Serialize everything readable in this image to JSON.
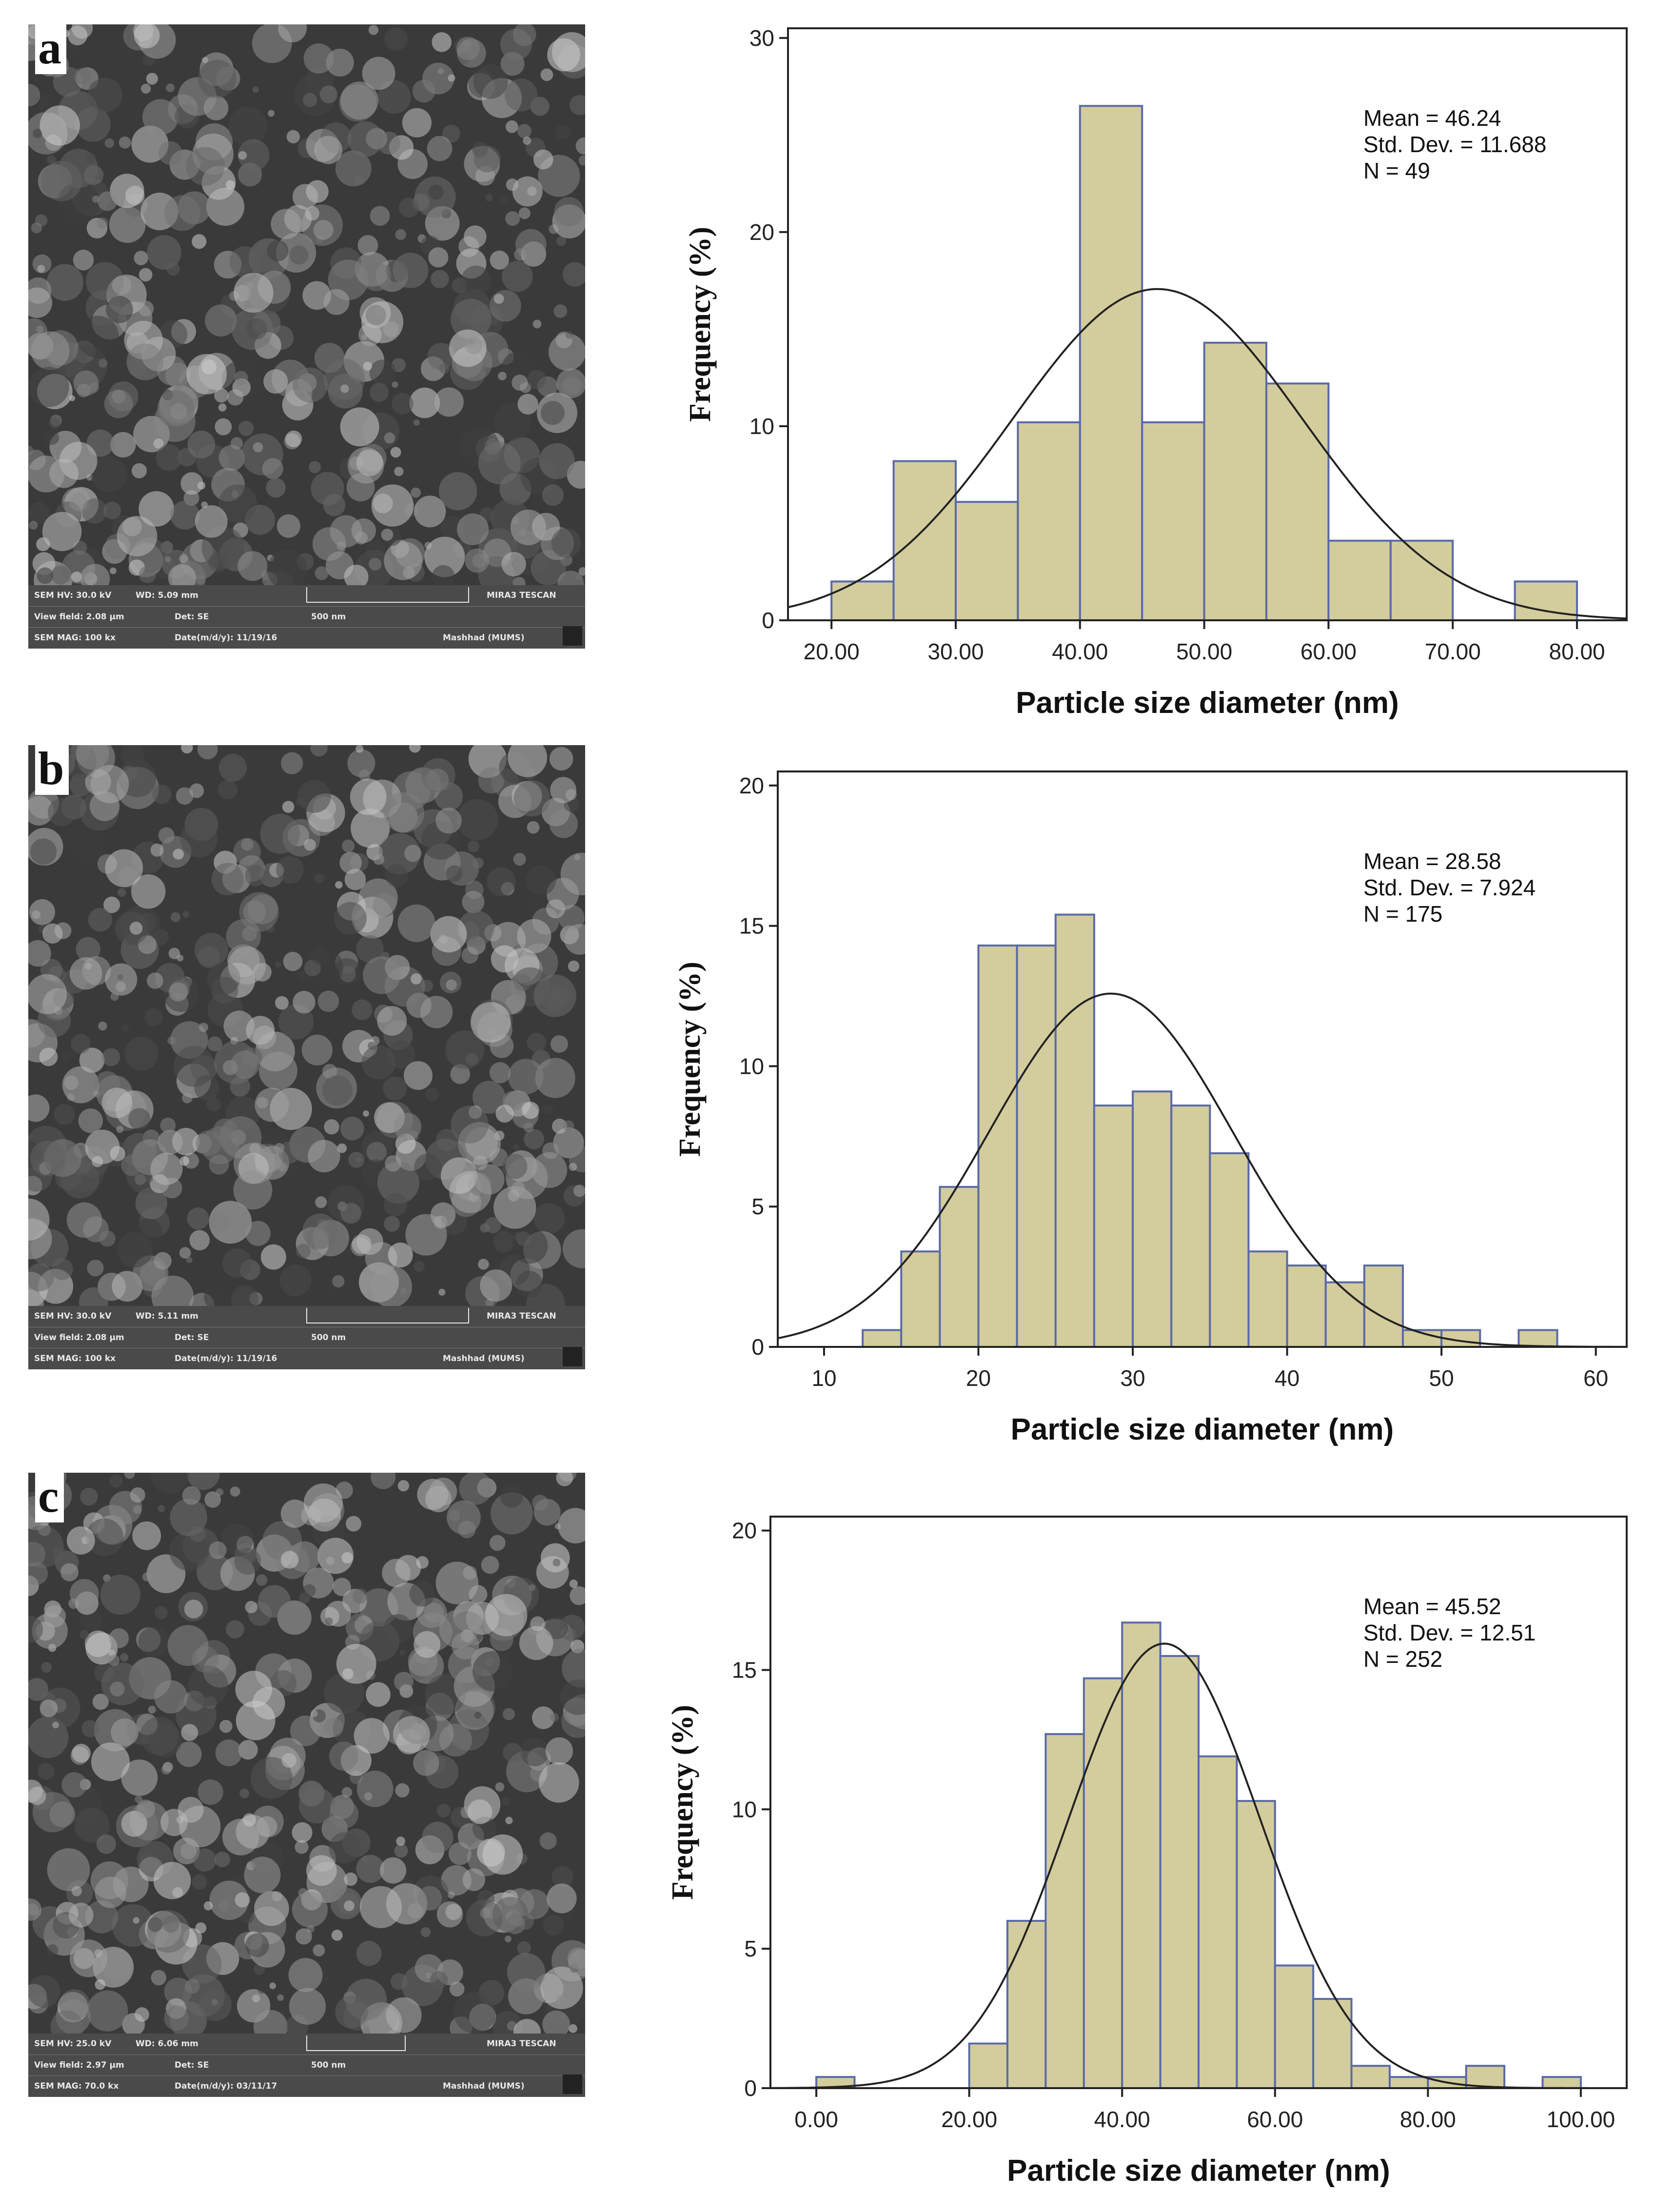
{
  "panels": [
    {
      "label": "a",
      "sem": {
        "hv": "SEM HV: 30.0 kV",
        "wd": "WD: 5.09 mm",
        "brand": "MIRA3 TESCAN",
        "view_field": "View field: 2.08 µm",
        "det": "Det: SE",
        "scale": "500 nm",
        "mag": "SEM MAG: 100 kx",
        "date": "Date(m/d/y): 11/19/16",
        "site": "Mashhad (MUMS)"
      },
      "chart_data": {
        "type": "bar",
        "xlabel": "Particle size diameter (nm)",
        "ylabel": "Frequency (%)",
        "xlim": [
          16.5,
          84.0
        ],
        "ylim": [
          0,
          30.5
        ],
        "xticks": [
          20,
          30,
          40,
          50,
          60,
          70,
          80
        ],
        "xtick_labels": [
          "20.00",
          "30.00",
          "40.00",
          "50.00",
          "60.00",
          "70.00",
          "80.00"
        ],
        "yticks": [
          0,
          10,
          20,
          30
        ],
        "bin_width": 5,
        "bin_starts": [
          20,
          25,
          30,
          35,
          40,
          45,
          50,
          55,
          60,
          65,
          70,
          75
        ],
        "values": [
          2.0,
          8.2,
          6.1,
          10.2,
          26.5,
          10.2,
          14.3,
          12.2,
          4.1,
          4.1,
          0,
          2.0
        ],
        "stats": [
          "Mean = 46.24",
          "Std. Dev. = 11.688",
          "N = 49"
        ],
        "mean": 46.24,
        "sd": 11.688,
        "n": 49,
        "bar_color": "#d3cc9c",
        "bar_edge": "#5a6aa8"
      }
    },
    {
      "label": "b",
      "sem": {
        "hv": "SEM HV: 30.0 kV",
        "wd": "WD: 5.11 mm",
        "brand": "MIRA3 TESCAN",
        "view_field": "View field: 2.08 µm",
        "det": "Det: SE",
        "scale": "500 nm",
        "mag": "SEM MAG: 100 kx",
        "date": "Date(m/d/y): 11/19/16",
        "site": "Mashhad (MUMS)"
      },
      "chart_data": {
        "type": "bar",
        "xlabel": "Particle size diameter (nm)",
        "ylabel": "Frequency (%)",
        "xlim": [
          7.0,
          62.0
        ],
        "ylim": [
          0,
          20.5
        ],
        "xticks": [
          10,
          20,
          30,
          40,
          50,
          60
        ],
        "xtick_labels": [
          "10",
          "20",
          "30",
          "40",
          "50",
          "60"
        ],
        "yticks": [
          0,
          5,
          10,
          15,
          20
        ],
        "bin_width": 2.5,
        "bin_starts": [
          12.5,
          15,
          17.5,
          20,
          22.5,
          25,
          27.5,
          30,
          32.5,
          35,
          37.5,
          40,
          42.5,
          45,
          47.5,
          50,
          52.5,
          55
        ],
        "values": [
          0.6,
          3.4,
          5.7,
          14.3,
          14.3,
          15.4,
          8.6,
          9.1,
          8.6,
          6.9,
          3.4,
          2.9,
          2.3,
          2.9,
          0.6,
          0.6,
          0,
          0.6
        ],
        "stats": [
          "Mean = 28.58",
          "Std. Dev. = 7.924",
          "N = 175"
        ],
        "mean": 28.58,
        "sd": 7.924,
        "n": 175,
        "bar_color": "#d3cc9c",
        "bar_edge": "#5a6aa8"
      }
    },
    {
      "label": "c",
      "sem": {
        "hv": "SEM HV: 25.0 kV",
        "wd": "WD: 6.06 mm",
        "brand": "MIRA3 TESCAN",
        "view_field": "View field: 2.97 µm",
        "det": "Det: SE",
        "scale": "500 nm",
        "mag": "SEM MAG: 70.0 kx",
        "date": "Date(m/d/y): 03/11/17",
        "site": "Mashhad (MUMS)"
      },
      "chart_data": {
        "type": "bar",
        "xlabel": "Particle size diameter (nm)",
        "ylabel": "Frequency (%)",
        "xlim": [
          -6.0,
          106.0
        ],
        "ylim": [
          0,
          20.5
        ],
        "xticks": [
          0,
          20,
          40,
          60,
          80,
          100
        ],
        "xtick_labels": [
          "0.00",
          "20.00",
          "40.00",
          "60.00",
          "80.00",
          "100.00"
        ],
        "yticks": [
          0,
          5,
          10,
          15,
          20
        ],
        "bin_width": 5,
        "bin_starts": [
          0,
          5,
          10,
          15,
          20,
          25,
          30,
          35,
          40,
          45,
          50,
          55,
          60,
          65,
          70,
          75,
          80,
          85,
          90,
          95
        ],
        "values": [
          0.4,
          0,
          0,
          0,
          1.6,
          6.0,
          12.7,
          14.7,
          16.7,
          15.5,
          11.9,
          10.3,
          4.4,
          3.2,
          0.8,
          0.4,
          0.4,
          0.8,
          0,
          0.4
        ],
        "stats": [
          "Mean = 45.52",
          "Std. Dev. = 12.51",
          "N = 252"
        ],
        "mean": 45.52,
        "sd": 12.51,
        "n": 252,
        "bar_color": "#d3cc9c",
        "bar_edge": "#5a6aa8"
      }
    }
  ]
}
